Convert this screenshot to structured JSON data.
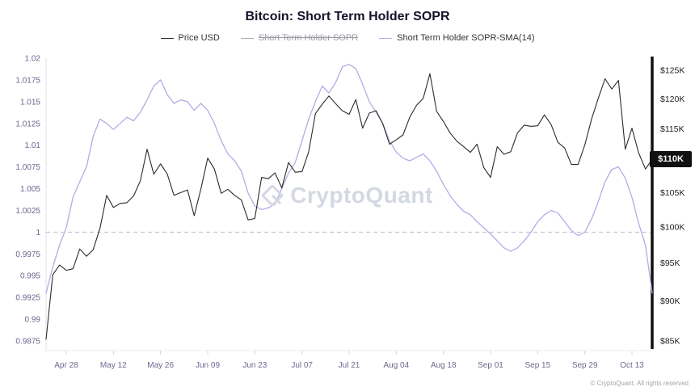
{
  "header": {
    "title": "Bitcoin: Short Term Holder SOPR"
  },
  "legend": [
    {
      "label": "Price USD",
      "color": "#2b2b2b",
      "disabled": false
    },
    {
      "label": "Short Term Holder SOPR",
      "color": "#a8a8b0",
      "disabled": true
    },
    {
      "label": "Short Term Holder SOPR-SMA(14)",
      "color": "#b9a8e8",
      "disabled": false
    }
  ],
  "watermark": "CryptoQuant",
  "price_badge": {
    "label": "$110K",
    "bg": "#111111",
    "text_color": "#ffffff"
  },
  "footer": {
    "copyright": "© CryptoQuant. All rights reserved"
  },
  "chart_data": {
    "type": "line",
    "title": "Bitcoin: Short Term Holder SOPR",
    "x_domain_days": [
      0,
      180
    ],
    "x_tick_labels": [
      "Apr 28",
      "May 12",
      "May 26",
      "Jun 09",
      "Jun 23",
      "Jul 07",
      "Jul 21",
      "Aug 04",
      "Aug 18",
      "Sep 01",
      "Sep 15",
      "Sep 29",
      "Oct 13"
    ],
    "x_tick_days": [
      6,
      20,
      34,
      48,
      62,
      76,
      90,
      104,
      118,
      132,
      146,
      160,
      174
    ],
    "left_axis": {
      "name": "SOPR",
      "scale": "linear",
      "range": [
        0.9875,
        1.02
      ],
      "tick_labels": [
        "1.02",
        "1.0175",
        "1.015",
        "1.0125",
        "1.01",
        "1.0075",
        "1.005",
        "1.0025",
        "1",
        "0.9975",
        "0.995",
        "0.9925",
        "0.99",
        "0.9875"
      ],
      "tick_values": [
        1.02,
        1.0175,
        1.015,
        1.0125,
        1.01,
        1.0075,
        1.005,
        1.0025,
        1.0,
        0.9975,
        0.995,
        0.9925,
        0.99,
        0.9875
      ]
    },
    "right_axis": {
      "name": "Price USD",
      "scale": "log",
      "range_kusd": [
        85,
        125
      ],
      "tick_labels": [
        "$125K",
        "$120K",
        "$115K",
        "$110K",
        "$105K",
        "$100K",
        "$95K",
        "$90K",
        "$85K"
      ],
      "tick_values_kusd": [
        125,
        120,
        115,
        110,
        105,
        100,
        95,
        90,
        85
      ]
    },
    "reference_line": {
      "axis": "left",
      "value": 1,
      "style": "dashed",
      "color": "#bcbcca"
    },
    "series": [
      {
        "name": "Price USD",
        "axis": "right",
        "color": "#2b2b2b",
        "unit": "K USD",
        "x_step_days": 2,
        "values": [
          85.2,
          93.4,
          94.7,
          94.0,
          94.2,
          96.9,
          95.9,
          96.8,
          99.8,
          104.6,
          102.8,
          103.4,
          103.5,
          104.5,
          106.8,
          111.7,
          107.8,
          109.4,
          107.8,
          104.6,
          105.0,
          105.4,
          101.6,
          105.6,
          110.3,
          108.6,
          104.9,
          105.5,
          104.6,
          103.9,
          101.0,
          101.2,
          107.3,
          107.1,
          108.0,
          105.7,
          109.6,
          108.1,
          108.2,
          111.3,
          117.5,
          119.1,
          120.5,
          119.2,
          118.0,
          117.4,
          119.9,
          115.1,
          117.6,
          118.0,
          115.8,
          112.5,
          113.2,
          114.0,
          116.9,
          118.9,
          120.1,
          124.4,
          117.9,
          116.2,
          114.3,
          113.0,
          112.1,
          111.2,
          112.5,
          108.8,
          107.3,
          112.1,
          110.9,
          111.3,
          114.3,
          115.6,
          115.4,
          115.5,
          117.3,
          115.7,
          112.8,
          111.9,
          109.3,
          109.3,
          112.4,
          116.6,
          120.1,
          123.5,
          121.7,
          123.2,
          111.7,
          115.1,
          111.1,
          108.6,
          110.1
        ]
      },
      {
        "name": "Short Term Holder SOPR-SMA(14)",
        "axis": "left",
        "color": "#b9a8e8",
        "unit": "ratio",
        "x_step_days": 2,
        "values": [
          0.993,
          0.996,
          0.9985,
          1.0005,
          1.004,
          1.0058,
          1.0075,
          1.011,
          1.013,
          1.0125,
          1.0118,
          1.0125,
          1.0132,
          1.0128,
          1.0138,
          1.0152,
          1.0168,
          1.0175,
          1.0158,
          1.0148,
          1.0152,
          1.015,
          1.014,
          1.0148,
          1.014,
          1.0125,
          1.0105,
          1.009,
          1.0082,
          1.007,
          1.0045,
          1.003,
          1.0026,
          1.0028,
          1.0032,
          1.005,
          1.0068,
          1.008,
          1.0105,
          1.013,
          1.015,
          1.0168,
          1.016,
          1.0172,
          1.019,
          1.0193,
          1.0188,
          1.017,
          1.015,
          1.0138,
          1.0125,
          1.0105,
          1.0092,
          1.0085,
          1.0082,
          1.0086,
          1.009,
          1.0082,
          1.007,
          1.0055,
          1.0042,
          1.0032,
          1.0024,
          1.002,
          1.0012,
          1.0005,
          0.9998,
          0.999,
          0.9982,
          0.9978,
          0.9982,
          0.999,
          1.0,
          1.0012,
          1.002,
          1.0025,
          1.0022,
          1.0012,
          1.0002,
          0.9996,
          1.0,
          1.0015,
          1.0035,
          1.0058,
          1.0072,
          1.0075,
          1.0062,
          1.004,
          1.001,
          0.9985,
          0.993
        ]
      }
    ],
    "current_price_kusd": 110.1,
    "legend_position": "top",
    "grid": "off"
  }
}
